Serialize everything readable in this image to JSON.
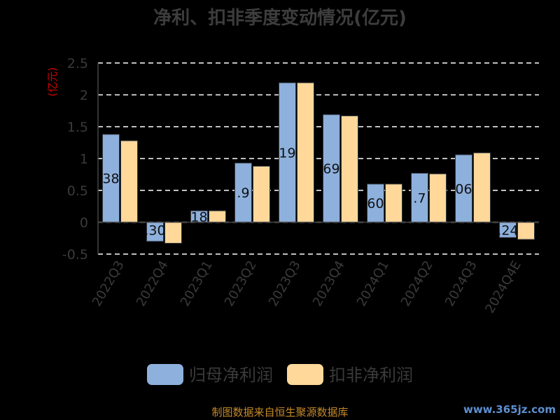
{
  "chart_data": {
    "type": "bar",
    "title": "净利、扣非季度变动情况(亿元)",
    "unit_label": "(亿元)",
    "categories": [
      "2022Q3",
      "2022Q4",
      "2023Q1",
      "2023Q2",
      "2023Q3",
      "2023Q4",
      "2024Q1",
      "2024Q2",
      "2024Q3",
      "2024Q4E"
    ],
    "series": [
      {
        "name": "归母净利润",
        "color": "#8eb0dc",
        "values": [
          1.38,
          -0.3,
          0.18,
          0.93,
          2.19,
          1.69,
          0.6,
          0.77,
          1.06,
          -0.24
        ]
      },
      {
        "name": "扣非净利润",
        "color": "#ffd89a",
        "values": [
          1.28,
          -0.33,
          0.18,
          0.88,
          2.19,
          1.67,
          0.6,
          0.76,
          1.09,
          -0.27
        ]
      }
    ],
    "data_labels": [
      "38",
      ".30",
      "18",
      ".9",
      "19",
      "69",
      "60",
      ".7",
      "06",
      ".24"
    ],
    "ylim": [
      -0.5,
      2.5
    ],
    "yticks": [
      "2.5",
      "2",
      "1.5",
      "1",
      "0.5",
      "0",
      "-0.5"
    ],
    "grid": true,
    "legend_position": "bottom"
  },
  "footer": {
    "source": "制图数据来自恒生聚源数据库",
    "watermark": "www.365jz.com"
  }
}
